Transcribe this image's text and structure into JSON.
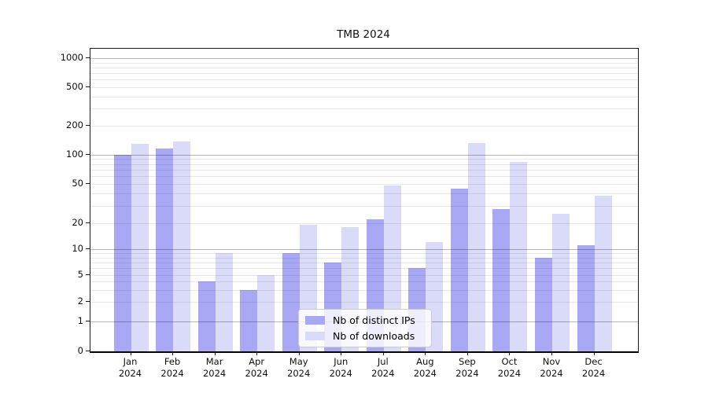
{
  "chart_data": {
    "type": "bar",
    "title": "TMB 2024",
    "categories": [
      "Jan 2024",
      "Feb 2024",
      "Mar 2024",
      "Apr 2024",
      "May 2024",
      "Jun 2024",
      "Jul 2024",
      "Aug 2024",
      "Sep 2024",
      "Oct 2024",
      "Nov 2024",
      "Dec 2024"
    ],
    "series": [
      {
        "name": "Nb of distinct IPs",
        "color": "#a8a8f5",
        "values": [
          100,
          115,
          4,
          3,
          9,
          7,
          22,
          6,
          45,
          28,
          8,
          11
        ]
      },
      {
        "name": "Nb of downloads",
        "color": "#dadaf9",
        "values": [
          130,
          137,
          9,
          5,
          19,
          18,
          48,
          12,
          131,
          84,
          25,
          38
        ]
      }
    ],
    "y_axis": {
      "ticks": [
        0,
        1,
        2,
        5,
        10,
        20,
        50,
        100,
        200,
        500,
        1000
      ],
      "scale": "log-like with zero baseline",
      "ylim": [
        0,
        1000
      ]
    },
    "x_axis": {
      "label_line2": "2024"
    },
    "grid": true,
    "legend_position": "inside bottom-center",
    "colors": {
      "major_grid": "rgba(0,0,0,0.28)",
      "minor_grid": "rgba(0,0,0,0.085)",
      "axis": "#1a1a1a",
      "background": "#ffffff"
    }
  }
}
